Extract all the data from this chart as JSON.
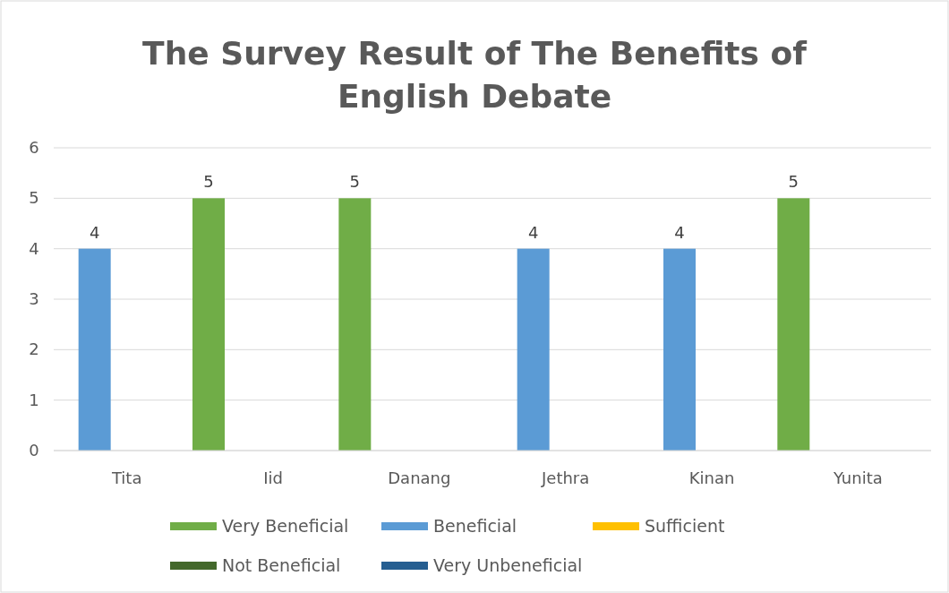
{
  "chart_data": {
    "type": "bar",
    "title": "The Survey Result of The Benefits of English Debate",
    "categories": [
      "Tita",
      "Iid",
      "Danang",
      "Jethra",
      "Kinan",
      "Yunita"
    ],
    "series": [
      {
        "name": "Very Beneficial",
        "color": "#70ad47",
        "values": [
          null,
          5,
          5,
          null,
          null,
          5
        ]
      },
      {
        "name": "Beneficial",
        "color": "#5b9bd5",
        "values": [
          4,
          null,
          null,
          4,
          4,
          null
        ]
      },
      {
        "name": "Sufficient",
        "color": "#ffc000",
        "values": [
          null,
          null,
          null,
          null,
          null,
          null
        ]
      },
      {
        "name": "Not Beneficial",
        "color": "#43682b",
        "values": [
          null,
          null,
          null,
          null,
          null,
          null
        ]
      },
      {
        "name": "Very Unbeneficial",
        "color": "#255e91",
        "values": [
          null,
          null,
          null,
          null,
          null,
          null
        ]
      }
    ],
    "ylim": [
      0,
      6
    ],
    "yticks": [
      0,
      1,
      2,
      3,
      4,
      5,
      6
    ],
    "grid": "y",
    "data_labels": true,
    "legend": "bottom"
  }
}
